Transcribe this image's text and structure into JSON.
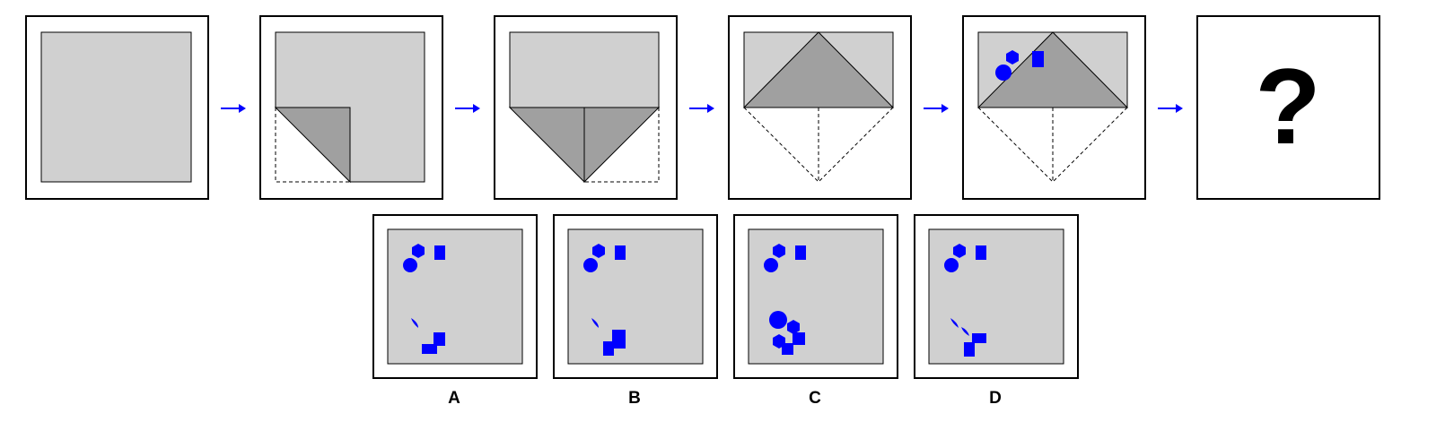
{
  "question_mark": "?",
  "options": [
    {
      "label": "A"
    },
    {
      "label": "B"
    },
    {
      "label": "C"
    },
    {
      "label": "D"
    }
  ],
  "colors": {
    "paper": "#d0d0d0",
    "fold": "#a0a0a0",
    "mark": "#0000ff",
    "arrow": "#0000ff",
    "frame": "#000000"
  }
}
